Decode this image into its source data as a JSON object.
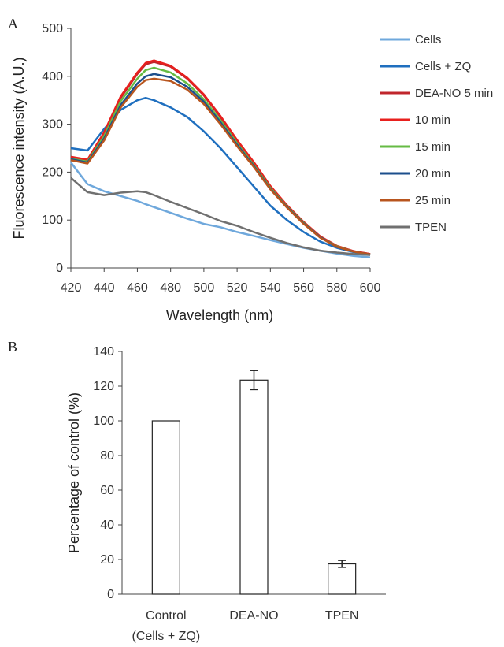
{
  "panels": {
    "a": "A",
    "b": "B"
  },
  "chart_data": [
    {
      "type": "line",
      "xlabel": "Wavelength (nm)",
      "ylabel": "Fluorescence intensity (A.U.)",
      "xlim": [
        420,
        600
      ],
      "ylim": [
        0,
        500
      ],
      "xticks": [
        420,
        440,
        460,
        480,
        500,
        520,
        540,
        560,
        580,
        600
      ],
      "yticks": [
        0,
        100,
        200,
        300,
        400,
        500
      ],
      "grid": false,
      "legend_position": "right",
      "x": [
        420,
        430,
        440,
        450,
        460,
        465,
        470,
        480,
        490,
        500,
        510,
        520,
        530,
        540,
        550,
        560,
        570,
        580,
        590,
        600
      ],
      "series": [
        {
          "name": "Cells",
          "color": "#6fa8dc",
          "values": [
            220,
            175,
            160,
            150,
            140,
            133,
            127,
            115,
            103,
            92,
            85,
            75,
            67,
            58,
            50,
            42,
            36,
            30,
            25,
            22
          ]
        },
        {
          "name": "Cells + ZQ",
          "color": "#1f6fbf",
          "values": [
            250,
            245,
            290,
            330,
            350,
            355,
            350,
            335,
            315,
            285,
            250,
            210,
            170,
            130,
            100,
            75,
            55,
            42,
            33,
            28
          ]
        },
        {
          "name": "DEA-NO 5 min",
          "color": "#c0262c",
          "values": [
            230,
            225,
            280,
            355,
            405,
            425,
            430,
            420,
            395,
            360,
            315,
            265,
            220,
            170,
            130,
            95,
            65,
            45,
            35,
            29
          ]
        },
        {
          "name": "10 min",
          "color": "#e8201e",
          "values": [
            232,
            226,
            283,
            358,
            408,
            428,
            433,
            422,
            397,
            362,
            317,
            267,
            221,
            171,
            131,
            96,
            66,
            46,
            35,
            29
          ]
        },
        {
          "name": "15 min",
          "color": "#66bb44",
          "values": [
            228,
            222,
            275,
            348,
            395,
            413,
            418,
            408,
            385,
            352,
            308,
            260,
            215,
            167,
            128,
            94,
            64,
            45,
            34,
            28
          ]
        },
        {
          "name": "20 min",
          "color": "#1c4f8c",
          "values": [
            227,
            220,
            270,
            340,
            385,
            400,
            405,
            398,
            378,
            347,
            304,
            257,
            213,
            165,
            127,
            93,
            64,
            44,
            34,
            28
          ]
        },
        {
          "name": "25 min",
          "color": "#b8551e",
          "values": [
            225,
            218,
            266,
            335,
            378,
            392,
            395,
            390,
            372,
            342,
            300,
            254,
            211,
            164,
            126,
            92,
            63,
            44,
            34,
            28
          ]
        },
        {
          "name": "TPEN",
          "color": "#707070",
          "values": [
            188,
            158,
            152,
            157,
            160,
            158,
            152,
            138,
            125,
            112,
            98,
            88,
            75,
            63,
            52,
            43,
            36,
            32,
            29,
            27
          ]
        }
      ]
    },
    {
      "type": "bar",
      "ylabel": "Percentage of control (%)",
      "ylim": [
        0,
        140
      ],
      "yticks": [
        0,
        20,
        40,
        60,
        80,
        100,
        120,
        140
      ],
      "grid": false,
      "categories": [
        {
          "line1": "Control",
          "line2": "(Cells + ZQ)"
        },
        {
          "line1": "DEA-NO",
          "line2": ""
        },
        {
          "line1": "TPEN",
          "line2": ""
        }
      ],
      "values": [
        100,
        123.5,
        17.5
      ],
      "errors": [
        0,
        5.5,
        2
      ],
      "bar_fill": "#ffffff",
      "bar_stroke": "#222222"
    }
  ]
}
